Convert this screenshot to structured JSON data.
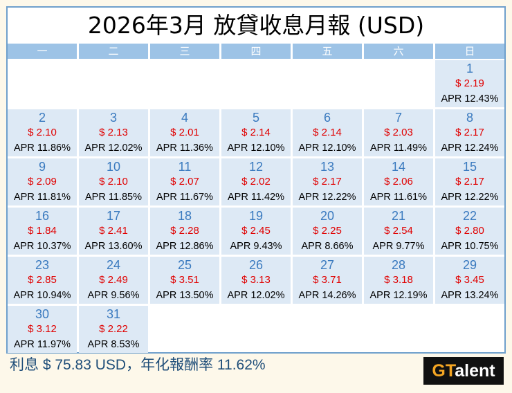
{
  "title": "2026年3月 放貸收息月報 (USD)",
  "weekdays": [
    "一",
    "二",
    "三",
    "四",
    "五",
    "六",
    "日"
  ],
  "leading_blanks": 6,
  "days": [
    {
      "day": "1",
      "amount": "$ 2.19",
      "apr": "APR 12.43%"
    },
    {
      "day": "2",
      "amount": "$ 2.10",
      "apr": "APR 11.86%"
    },
    {
      "day": "3",
      "amount": "$ 2.13",
      "apr": "APR 12.02%"
    },
    {
      "day": "4",
      "amount": "$ 2.01",
      "apr": "APR 11.36%"
    },
    {
      "day": "5",
      "amount": "$ 2.14",
      "apr": "APR 12.10%"
    },
    {
      "day": "6",
      "amount": "$ 2.14",
      "apr": "APR 12.10%"
    },
    {
      "day": "7",
      "amount": "$ 2.03",
      "apr": "APR 11.49%"
    },
    {
      "day": "8",
      "amount": "$ 2.17",
      "apr": "APR 12.24%"
    },
    {
      "day": "9",
      "amount": "$ 2.09",
      "apr": "APR 11.81%"
    },
    {
      "day": "10",
      "amount": "$ 2.10",
      "apr": "APR 11.85%"
    },
    {
      "day": "11",
      "amount": "$ 2.07",
      "apr": "APR 11.67%"
    },
    {
      "day": "12",
      "amount": "$ 2.02",
      "apr": "APR 11.42%"
    },
    {
      "day": "13",
      "amount": "$ 2.17",
      "apr": "APR 12.22%"
    },
    {
      "day": "14",
      "amount": "$ 2.06",
      "apr": "APR 11.61%"
    },
    {
      "day": "15",
      "amount": "$ 2.17",
      "apr": "APR 12.22%"
    },
    {
      "day": "16",
      "amount": "$ 1.84",
      "apr": "APR 10.37%"
    },
    {
      "day": "17",
      "amount": "$ 2.41",
      "apr": "APR 13.60%"
    },
    {
      "day": "18",
      "amount": "$ 2.28",
      "apr": "APR 12.86%"
    },
    {
      "day": "19",
      "amount": "$ 2.45",
      "apr": "APR 9.43%"
    },
    {
      "day": "20",
      "amount": "$ 2.25",
      "apr": "APR 8.66%"
    },
    {
      "day": "21",
      "amount": "$ 2.54",
      "apr": "APR 9.77%"
    },
    {
      "day": "22",
      "amount": "$ 2.80",
      "apr": "APR 10.75%"
    },
    {
      "day": "23",
      "amount": "$ 2.85",
      "apr": "APR 10.94%"
    },
    {
      "day": "24",
      "amount": "$ 2.49",
      "apr": "APR 9.56%"
    },
    {
      "day": "25",
      "amount": "$ 3.51",
      "apr": "APR 13.50%"
    },
    {
      "day": "26",
      "amount": "$ 3.13",
      "apr": "APR 12.02%"
    },
    {
      "day": "27",
      "amount": "$ 3.71",
      "apr": "APR 14.26%"
    },
    {
      "day": "28",
      "amount": "$ 3.18",
      "apr": "APR 12.19%"
    },
    {
      "day": "29",
      "amount": "$ 3.45",
      "apr": "APR 13.24%"
    },
    {
      "day": "30",
      "amount": "$ 3.12",
      "apr": "APR 11.97%"
    },
    {
      "day": "31",
      "amount": "$ 2.22",
      "apr": "APR 8.53%"
    }
  ],
  "footer": "利息 $ 75.83 USD，年化報酬率 11.62%",
  "logo": {
    "part1": "GT",
    "part2": "alent"
  },
  "colors": {
    "header": "#9dc3e6",
    "cell": "#dde9f5",
    "day": "#3a7abf",
    "amount": "#e00000",
    "frame": "#6fa0cc"
  }
}
